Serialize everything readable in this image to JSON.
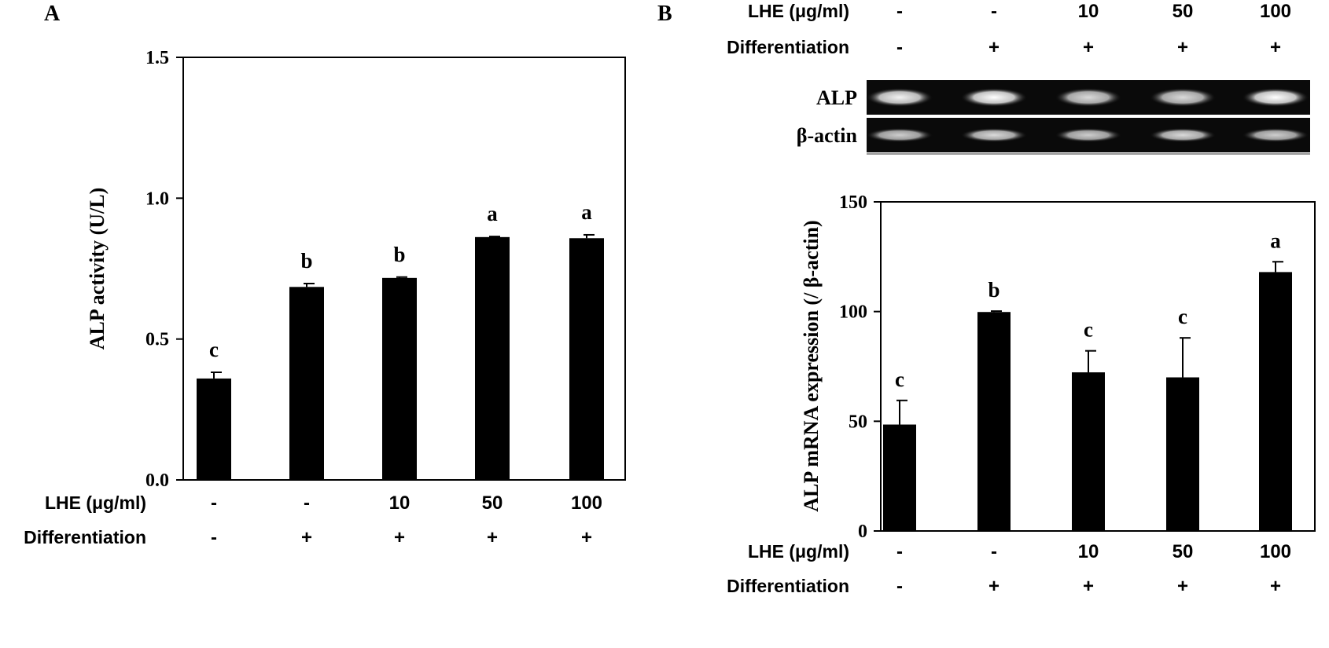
{
  "chart_data": [
    {
      "panel": "A",
      "type": "bar",
      "categories": [
        "1",
        "2",
        "3",
        "4",
        "5"
      ],
      "values": [
        0.36,
        0.685,
        0.717,
        0.862,
        0.858
      ],
      "errors": [
        0.022,
        0.012,
        0.003,
        0.002,
        0.012
      ],
      "significance": [
        "c",
        "b",
        "b",
        "a",
        "a"
      ],
      "ylabel": "ALP activity (U/L)",
      "ylim": [
        0.0,
        1.5
      ],
      "yticks": [
        "0.0",
        "0.5",
        "1.0",
        "1.5"
      ],
      "ytick_values": [
        0.0,
        0.5,
        1.0,
        1.5
      ],
      "conditions": [
        {
          "label": "LHE (μg/ml)",
          "values": [
            "-",
            "-",
            "10",
            "50",
            "100"
          ]
        },
        {
          "label": "Differentiation",
          "values": [
            "-",
            "+",
            "+",
            "+",
            "+"
          ]
        }
      ]
    },
    {
      "panel": "B",
      "type": "bar",
      "categories": [
        "1",
        "2",
        "3",
        "4",
        "5"
      ],
      "values": [
        48.5,
        99.8,
        72.3,
        70.0,
        118.0
      ],
      "errors": [
        11.0,
        0.4,
        9.8,
        18.0,
        4.7
      ],
      "significance": [
        "c",
        "b",
        "c",
        "c",
        "a"
      ],
      "ylabel": "ALP mRNA expression (/ β-actin)",
      "ylim": [
        0,
        150
      ],
      "yticks": [
        "0",
        "50",
        "100",
        "150"
      ],
      "ytick_values": [
        0,
        50,
        100,
        150
      ],
      "conditions": [
        {
          "label": "LHE (μg/ml)",
          "values": [
            "-",
            "-",
            "10",
            "50",
            "100"
          ]
        },
        {
          "label": "Differentiation",
          "values": [
            "-",
            "+",
            "+",
            "+",
            "+"
          ]
        }
      ],
      "gel": {
        "rows": [
          {
            "label": "ALP",
            "band_intensity": [
              0.95,
              1.0,
              0.85,
              0.85,
              1.0
            ]
          },
          {
            "label": "β-actin",
            "band_intensity": [
              0.8,
              0.85,
              0.8,
              0.85,
              0.8
            ]
          }
        ]
      }
    }
  ]
}
